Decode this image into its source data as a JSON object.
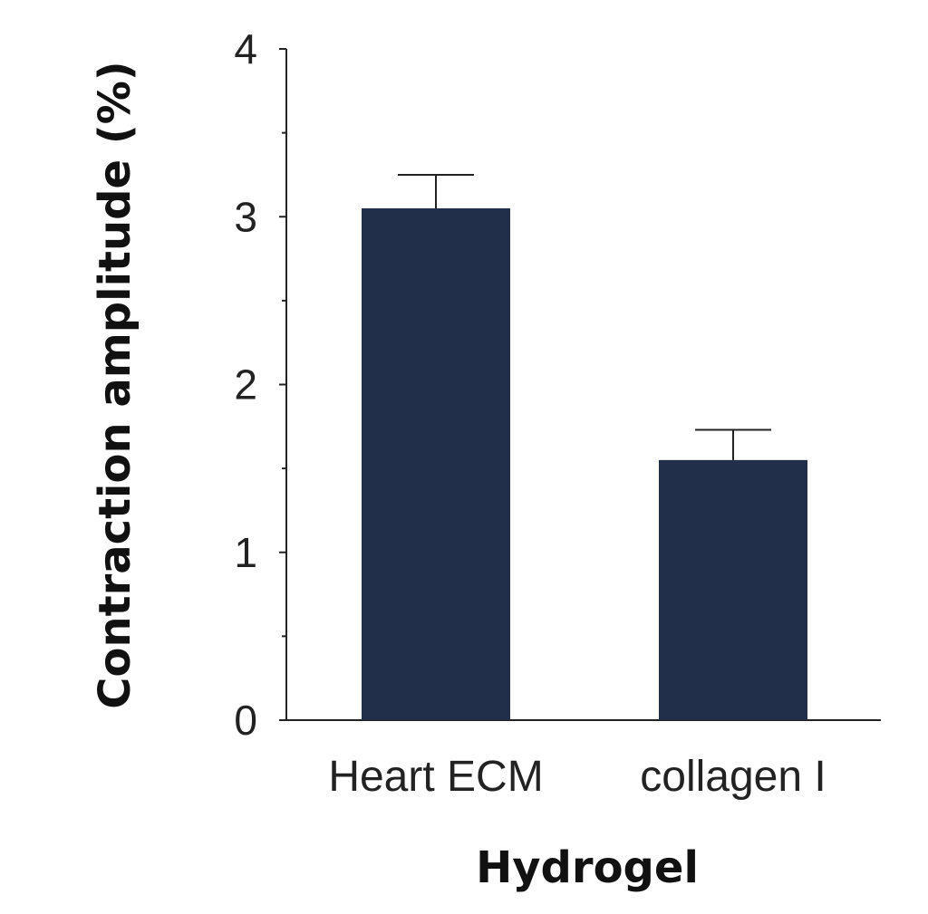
{
  "chart_data": {
    "type": "bar",
    "categories": [
      "Heart ECM",
      "collagen I"
    ],
    "values": [
      3.05,
      1.55
    ],
    "error_upper": [
      3.25,
      1.73
    ],
    "xlabel": "Hydrogel",
    "ylabel": "Contraction amplitude (%)",
    "ylim": [
      0,
      4
    ],
    "yticks": [
      "0",
      "1",
      "2",
      "3",
      "4"
    ],
    "grid": false,
    "bar_color": "#222f4a"
  }
}
